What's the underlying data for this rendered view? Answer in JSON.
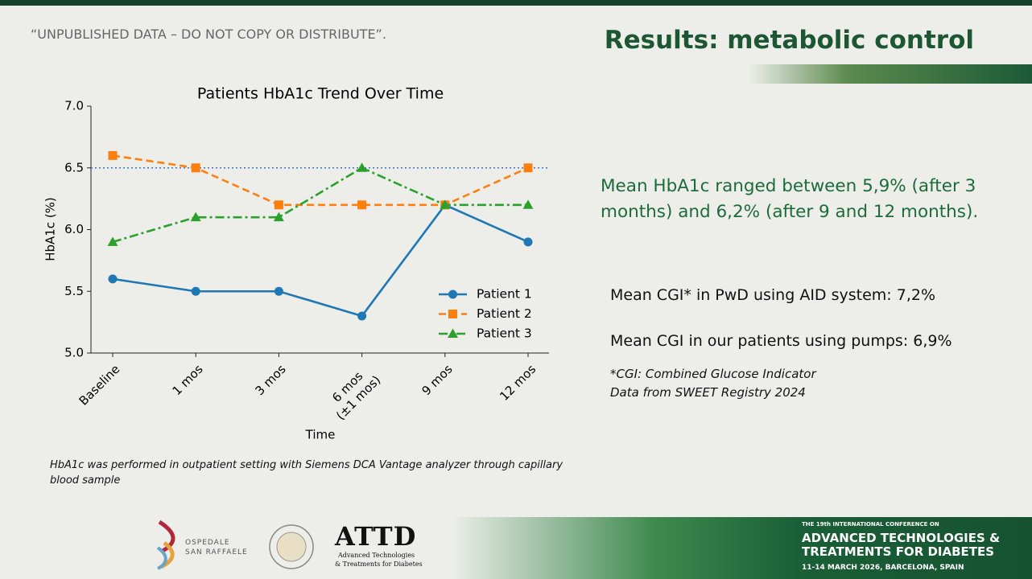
{
  "header": {
    "notice": "“UNPUBLISHED DATA – DO NOT COPY OR DISTRIBUTE”.",
    "title": "Results: metabolic control"
  },
  "chart_data": {
    "type": "line",
    "title": "Patients HbA1c Trend Over Time",
    "x_label": "Time",
    "y_label": "HbA1c (%)",
    "categories": [
      "Baseline",
      "1 mos",
      "3 mos",
      "6 mos\n(±1 mos)",
      "9 mos",
      "12 mos"
    ],
    "series": [
      {
        "name": "Patient 1",
        "color": "#1f77b4",
        "linestyle": "solid",
        "marker": "circle",
        "values": [
          5.6,
          5.5,
          5.5,
          5.3,
          6.2,
          5.9
        ]
      },
      {
        "name": "Patient 2",
        "color": "#ff7f0e",
        "linestyle": "dashed",
        "marker": "square",
        "values": [
          6.6,
          6.5,
          6.2,
          6.2,
          6.2,
          6.5
        ]
      },
      {
        "name": "Patient 3",
        "color": "#2ca02c",
        "linestyle": "dashdot",
        "marker": "triangle",
        "values": [
          5.9,
          6.1,
          6.1,
          6.5,
          6.2,
          6.2
        ]
      }
    ],
    "reference_line": {
      "value": 6.5,
      "color": "#4472c4",
      "linestyle": "dotted"
    },
    "ylim": [
      5.0,
      7.0
    ],
    "yticks": [
      {
        "value": 5.0,
        "label": "5.0"
      },
      5.5,
      {
        "value": 6.0,
        "label": "6.0"
      },
      6.5,
      {
        "value": 7.0,
        "label": "7.0"
      }
    ],
    "legend": "lower right",
    "grid": false
  },
  "chart_note": "HbA1c was performed in outpatient setting with Siemens DCA Vantage analyzer through capillary blood sample",
  "findings": {
    "hba1c": "Mean HbA1c ranged between 5,9% (after 3 months) and 6,2% (after 9 and 12 months).",
    "cgi_aid": "Mean CGI* in PwD using AID system: 7,2%",
    "cgi_pumps": "Mean CGI in our patients using pumps: 6,9%",
    "footnote_1": "*CGI: Combined Glucose Indicator",
    "footnote_2": "Data from SWEET  Registry 2024"
  },
  "logos": {
    "hospital_1": "OSPEDALE",
    "hospital_2": "SAN RAFFAELE",
    "attd": "ATTD",
    "attd_sub_1": "Advanced Technologies",
    "attd_sub_2": "& Treatments for Diabetes"
  },
  "conference": {
    "line_1": "THE 19th INTERNATIONAL CONFERENCE ON",
    "line_2": "ADVANCED TECHNOLOGIES &",
    "line_3": "TREATMENTS FOR DIABETES",
    "line_4": "11-14 MARCH 2026, BARCELONA, SPAIN"
  }
}
